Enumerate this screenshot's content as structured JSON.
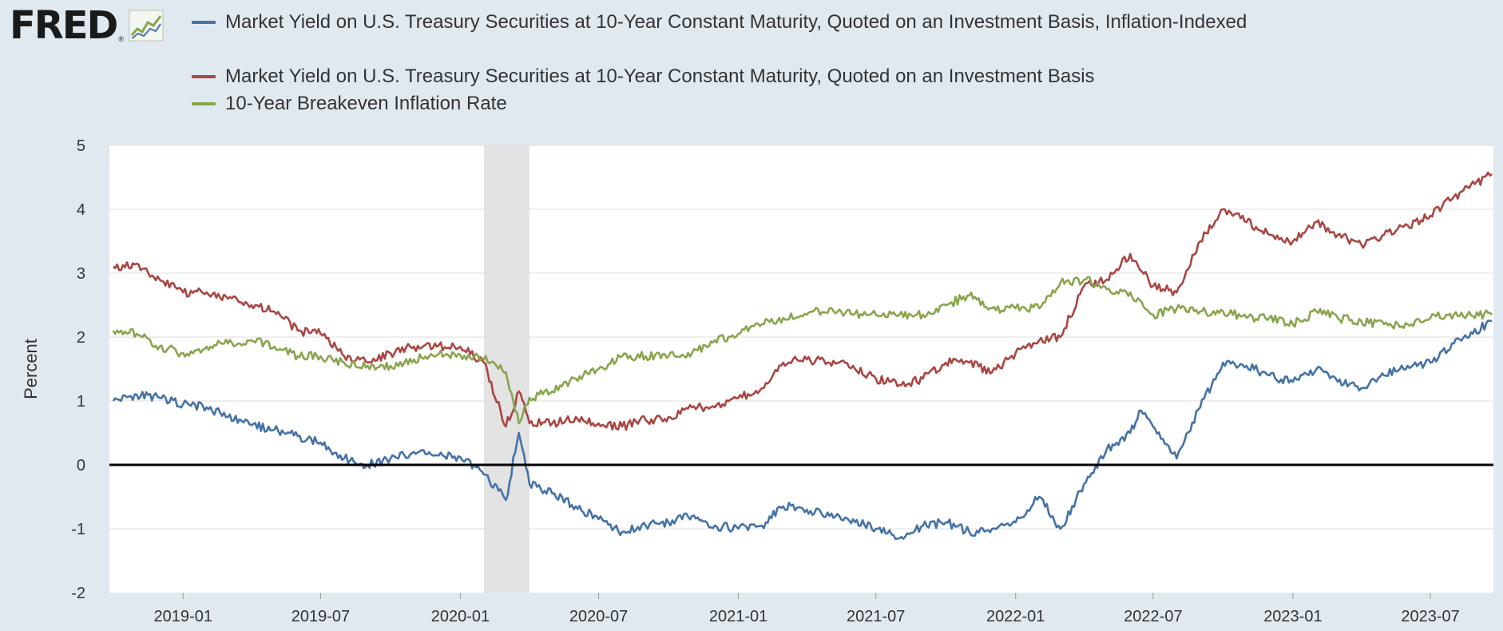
{
  "logo": {
    "text": "FRED",
    "registered": "®",
    "icon": "chart-line-icon"
  },
  "chart_data": {
    "type": "line",
    "title": "",
    "ylabel": "Percent",
    "xlabel": "",
    "ylim": [
      -2,
      5
    ],
    "yticks": [
      -2,
      -1,
      0,
      1,
      2,
      3,
      4,
      5
    ],
    "xlim": [
      "2018-09-26",
      "2023-09-22"
    ],
    "xticks": [
      "2019-01",
      "2019-07",
      "2020-01",
      "2020-07",
      "2021-01",
      "2021-07",
      "2022-01",
      "2022-07",
      "2023-01",
      "2023-07"
    ],
    "zero_line": true,
    "recession_shading": {
      "start": "2020-02-01",
      "end": "2020-04-01"
    },
    "series": [
      {
        "name": "Market Yield on U.S. Treasury Securities at 10-Year Constant Maturity, Quoted on an Investment Basis, Inflation-Indexed",
        "color": "#4572a7",
        "points": [
          [
            "2018-10-01",
            1.0
          ],
          [
            "2018-11-01",
            1.1
          ],
          [
            "2018-12-01",
            1.05
          ],
          [
            "2019-01-01",
            0.95
          ],
          [
            "2019-02-01",
            0.9
          ],
          [
            "2019-03-01",
            0.75
          ],
          [
            "2019-04-01",
            0.62
          ],
          [
            "2019-05-01",
            0.55
          ],
          [
            "2019-06-01",
            0.45
          ],
          [
            "2019-07-01",
            0.35
          ],
          [
            "2019-08-01",
            0.1
          ],
          [
            "2019-09-01",
            0.0
          ],
          [
            "2019-10-01",
            0.1
          ],
          [
            "2019-11-01",
            0.2
          ],
          [
            "2019-12-01",
            0.15
          ],
          [
            "2020-01-01",
            0.12
          ],
          [
            "2020-02-01",
            -0.15
          ],
          [
            "2020-03-01",
            -0.55
          ],
          [
            "2020-03-18",
            0.5
          ],
          [
            "2020-04-01",
            -0.3
          ],
          [
            "2020-05-01",
            -0.45
          ],
          [
            "2020-06-01",
            -0.65
          ],
          [
            "2020-07-01",
            -0.85
          ],
          [
            "2020-08-01",
            -1.05
          ],
          [
            "2020-09-01",
            -0.95
          ],
          [
            "2020-10-01",
            -0.9
          ],
          [
            "2020-11-01",
            -0.8
          ],
          [
            "2020-12-01",
            -0.95
          ],
          [
            "2021-01-01",
            -1.0
          ],
          [
            "2021-02-01",
            -0.95
          ],
          [
            "2021-03-01",
            -0.65
          ],
          [
            "2021-04-01",
            -0.7
          ],
          [
            "2021-05-01",
            -0.8
          ],
          [
            "2021-06-01",
            -0.85
          ],
          [
            "2021-07-01",
            -1.0
          ],
          [
            "2021-08-01",
            -1.15
          ],
          [
            "2021-09-01",
            -0.95
          ],
          [
            "2021-10-01",
            -0.9
          ],
          [
            "2021-11-01",
            -1.05
          ],
          [
            "2021-12-01",
            -1.0
          ],
          [
            "2022-01-01",
            -0.9
          ],
          [
            "2022-02-01",
            -0.5
          ],
          [
            "2022-03-01",
            -1.0
          ],
          [
            "2022-04-01",
            -0.3
          ],
          [
            "2022-05-01",
            0.25
          ],
          [
            "2022-06-01",
            0.5
          ],
          [
            "2022-06-15",
            0.85
          ],
          [
            "2022-07-01",
            0.6
          ],
          [
            "2022-08-01",
            0.1
          ],
          [
            "2022-09-01",
            0.9
          ],
          [
            "2022-10-01",
            1.6
          ],
          [
            "2022-11-01",
            1.55
          ],
          [
            "2022-12-01",
            1.4
          ],
          [
            "2023-01-01",
            1.3
          ],
          [
            "2023-02-01",
            1.5
          ],
          [
            "2023-03-01",
            1.3
          ],
          [
            "2023-04-01",
            1.2
          ],
          [
            "2023-05-01",
            1.4
          ],
          [
            "2023-06-01",
            1.55
          ],
          [
            "2023-07-01",
            1.6
          ],
          [
            "2023-08-01",
            1.9
          ],
          [
            "2023-09-20",
            2.25
          ]
        ]
      },
      {
        "name": "Market Yield on U.S. Treasury Securities at 10-Year Constant Maturity, Quoted on an Investment Basis",
        "color": "#aa4643",
        "points": [
          [
            "2018-10-01",
            3.1
          ],
          [
            "2018-11-01",
            3.15
          ],
          [
            "2018-12-01",
            2.9
          ],
          [
            "2019-01-01",
            2.7
          ],
          [
            "2019-02-01",
            2.7
          ],
          [
            "2019-03-01",
            2.6
          ],
          [
            "2019-04-01",
            2.5
          ],
          [
            "2019-05-01",
            2.4
          ],
          [
            "2019-06-01",
            2.1
          ],
          [
            "2019-07-01",
            2.05
          ],
          [
            "2019-08-01",
            1.7
          ],
          [
            "2019-09-01",
            1.6
          ],
          [
            "2019-10-01",
            1.75
          ],
          [
            "2019-11-01",
            1.85
          ],
          [
            "2019-12-01",
            1.85
          ],
          [
            "2020-01-01",
            1.85
          ],
          [
            "2020-02-01",
            1.6
          ],
          [
            "2020-03-01",
            0.6
          ],
          [
            "2020-03-18",
            1.15
          ],
          [
            "2020-04-01",
            0.65
          ],
          [
            "2020-05-01",
            0.65
          ],
          [
            "2020-06-01",
            0.75
          ],
          [
            "2020-07-01",
            0.65
          ],
          [
            "2020-08-01",
            0.6
          ],
          [
            "2020-09-01",
            0.7
          ],
          [
            "2020-10-01",
            0.75
          ],
          [
            "2020-11-01",
            0.9
          ],
          [
            "2020-12-01",
            0.9
          ],
          [
            "2021-01-01",
            1.05
          ],
          [
            "2021-02-01",
            1.2
          ],
          [
            "2021-03-01",
            1.6
          ],
          [
            "2021-04-01",
            1.65
          ],
          [
            "2021-05-01",
            1.6
          ],
          [
            "2021-06-01",
            1.55
          ],
          [
            "2021-07-01",
            1.35
          ],
          [
            "2021-08-01",
            1.25
          ],
          [
            "2021-09-01",
            1.35
          ],
          [
            "2021-10-01",
            1.6
          ],
          [
            "2021-11-01",
            1.6
          ],
          [
            "2021-12-01",
            1.45
          ],
          [
            "2022-01-01",
            1.75
          ],
          [
            "2022-02-01",
            1.95
          ],
          [
            "2022-03-01",
            2.0
          ],
          [
            "2022-04-01",
            2.8
          ],
          [
            "2022-05-01",
            2.9
          ],
          [
            "2022-06-01",
            3.3
          ],
          [
            "2022-07-01",
            2.8
          ],
          [
            "2022-08-01",
            2.7
          ],
          [
            "2022-09-01",
            3.5
          ],
          [
            "2022-10-01",
            4.0
          ],
          [
            "2022-11-01",
            3.8
          ],
          [
            "2022-12-01",
            3.6
          ],
          [
            "2023-01-01",
            3.5
          ],
          [
            "2023-02-01",
            3.8
          ],
          [
            "2023-03-01",
            3.6
          ],
          [
            "2023-04-01",
            3.45
          ],
          [
            "2023-05-01",
            3.6
          ],
          [
            "2023-06-01",
            3.75
          ],
          [
            "2023-07-01",
            3.9
          ],
          [
            "2023-08-01",
            4.2
          ],
          [
            "2023-09-20",
            4.55
          ]
        ]
      },
      {
        "name": "10-Year Breakeven Inflation Rate",
        "color": "#89a54e",
        "points": [
          [
            "2018-10-01",
            2.1
          ],
          [
            "2018-11-01",
            2.05
          ],
          [
            "2018-12-01",
            1.85
          ],
          [
            "2019-01-01",
            1.75
          ],
          [
            "2019-02-01",
            1.85
          ],
          [
            "2019-03-01",
            1.9
          ],
          [
            "2019-04-01",
            1.95
          ],
          [
            "2019-05-01",
            1.85
          ],
          [
            "2019-06-01",
            1.7
          ],
          [
            "2019-07-01",
            1.7
          ],
          [
            "2019-08-01",
            1.6
          ],
          [
            "2019-09-01",
            1.55
          ],
          [
            "2019-10-01",
            1.55
          ],
          [
            "2019-11-01",
            1.65
          ],
          [
            "2019-12-01",
            1.72
          ],
          [
            "2020-01-01",
            1.72
          ],
          [
            "2020-02-01",
            1.65
          ],
          [
            "2020-03-01",
            1.45
          ],
          [
            "2020-03-18",
            0.65
          ],
          [
            "2020-04-01",
            1.05
          ],
          [
            "2020-05-01",
            1.15
          ],
          [
            "2020-06-01",
            1.35
          ],
          [
            "2020-07-01",
            1.5
          ],
          [
            "2020-08-01",
            1.7
          ],
          [
            "2020-09-01",
            1.7
          ],
          [
            "2020-10-01",
            1.7
          ],
          [
            "2020-11-01",
            1.75
          ],
          [
            "2020-12-01",
            1.95
          ],
          [
            "2021-01-01",
            2.05
          ],
          [
            "2021-02-01",
            2.2
          ],
          [
            "2021-03-01",
            2.3
          ],
          [
            "2021-04-01",
            2.35
          ],
          [
            "2021-05-01",
            2.45
          ],
          [
            "2021-06-01",
            2.35
          ],
          [
            "2021-07-01",
            2.35
          ],
          [
            "2021-08-01",
            2.35
          ],
          [
            "2021-09-01",
            2.35
          ],
          [
            "2021-10-01",
            2.5
          ],
          [
            "2021-11-01",
            2.65
          ],
          [
            "2021-12-01",
            2.45
          ],
          [
            "2022-01-01",
            2.45
          ],
          [
            "2022-02-01",
            2.45
          ],
          [
            "2022-03-01",
            2.85
          ],
          [
            "2022-04-01",
            2.9
          ],
          [
            "2022-05-01",
            2.75
          ],
          [
            "2022-06-01",
            2.7
          ],
          [
            "2022-07-01",
            2.35
          ],
          [
            "2022-08-01",
            2.45
          ],
          [
            "2022-09-01",
            2.4
          ],
          [
            "2022-10-01",
            2.4
          ],
          [
            "2022-11-01",
            2.3
          ],
          [
            "2022-12-01",
            2.3
          ],
          [
            "2023-01-01",
            2.2
          ],
          [
            "2023-02-01",
            2.4
          ],
          [
            "2023-03-01",
            2.3
          ],
          [
            "2023-04-01",
            2.25
          ],
          [
            "2023-05-01",
            2.2
          ],
          [
            "2023-06-01",
            2.2
          ],
          [
            "2023-07-01",
            2.3
          ],
          [
            "2023-08-01",
            2.35
          ],
          [
            "2023-09-20",
            2.35
          ]
        ]
      }
    ]
  }
}
